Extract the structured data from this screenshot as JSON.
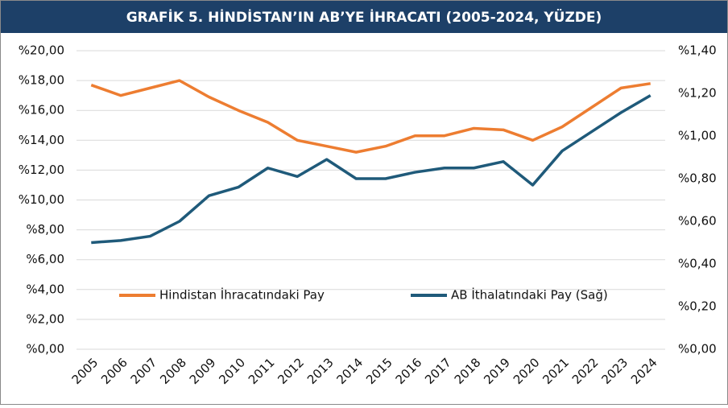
{
  "chart_data": {
    "type": "line",
    "title": "GRAFİK 5. HİNDİSTAN’IN AB’YE İHRACATI (2005-2024, YÜZDE)",
    "categories": [
      "2005",
      "2006",
      "2007",
      "2008",
      "2009",
      "2010",
      "2011",
      "2012",
      "2013",
      "2014",
      "2015",
      "2016",
      "2017",
      "2018",
      "2019",
      "2020",
      "2021",
      "2022",
      "2023",
      "2024"
    ],
    "series": [
      {
        "name": "Hindistan İhracatındaki Pay",
        "color": "#ed7d31",
        "values": [
          17.7,
          17.0,
          17.5,
          18.0,
          16.9,
          16.0,
          15.2,
          14.0,
          13.6,
          13.2,
          13.6,
          14.3,
          14.3,
          14.8,
          14.7,
          14.0,
          14.9,
          16.2,
          17.5,
          17.8
        ]
      },
      {
        "name": "AB İthalatındaki Pay (Sağ)",
        "color": "#1f5a7a",
        "axis": "y2",
        "values": [
          0.5,
          0.51,
          0.53,
          0.6,
          0.72,
          0.76,
          0.85,
          0.81,
          0.89,
          0.8,
          0.8,
          0.83,
          0.85,
          0.85,
          0.88,
          0.77,
          0.93,
          1.02,
          1.11,
          1.19
        ]
      }
    ],
    "ylim": [
      0,
      20
    ],
    "yticks": [
      {
        "value": 0,
        "label": "%0,00"
      },
      {
        "value": 2,
        "label": "%2,00"
      },
      {
        "value": 4,
        "label": "%4,00"
      },
      {
        "value": 6,
        "label": "%6,00"
      },
      {
        "value": 8,
        "label": "%8,00"
      },
      {
        "value": 10,
        "label": "%10,00"
      },
      {
        "value": 12,
        "label": "%12,00"
      },
      {
        "value": 14,
        "label": "%14,00"
      },
      {
        "value": 16,
        "label": "%16,00"
      },
      {
        "value": 18,
        "label": "%18,00"
      },
      {
        "value": 20,
        "label": "%20,00"
      }
    ],
    "y2lim": [
      0,
      1.4
    ],
    "y2ticks": [
      {
        "value": 0,
        "label": "%0,00"
      },
      {
        "value": 0.2,
        "label": "%0,20"
      },
      {
        "value": 0.4,
        "label": "%0,40"
      },
      {
        "value": 0.6,
        "label": "%0,60"
      },
      {
        "value": 0.8,
        "label": "%0,80"
      },
      {
        "value": 1.0,
        "label": "%1,00"
      },
      {
        "value": 1.2,
        "label": "%1,20"
      },
      {
        "value": 1.4,
        "label": "%1,40"
      }
    ],
    "grid": true
  }
}
